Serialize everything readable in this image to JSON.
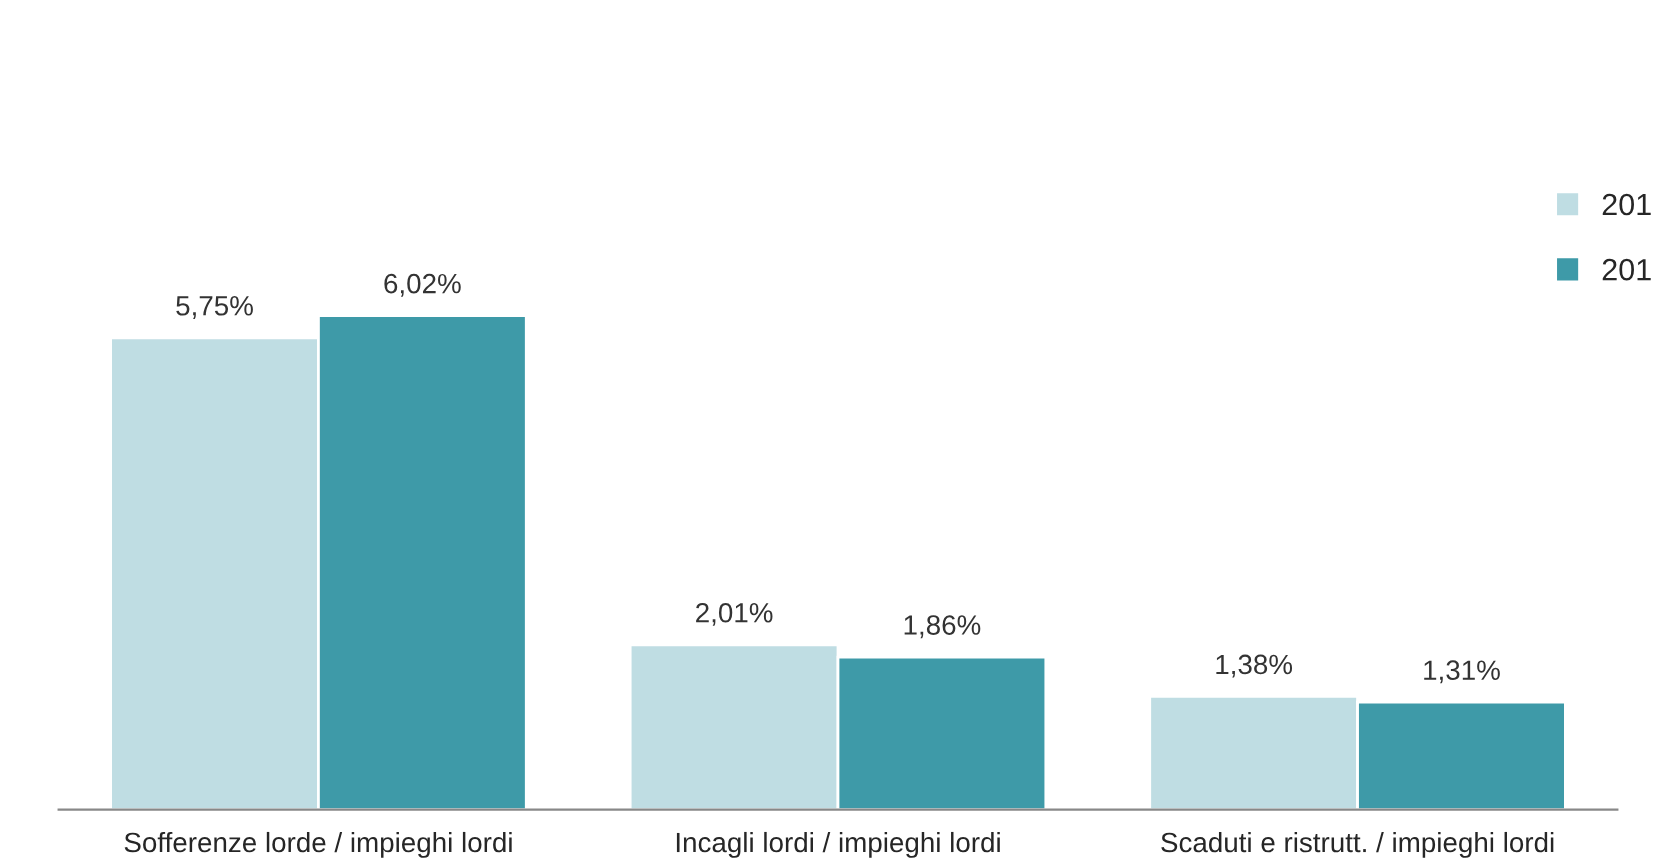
{
  "chart_data": {
    "type": "bar",
    "categories": [
      "Sofferenze lorde / impieghi lordi",
      "Incagli lordi / impieghi lordi",
      "Scaduti e ristrutt. / impieghi lordi"
    ],
    "series": [
      {
        "name": "201",
        "color": "#bfdde3",
        "values": [
          5.75,
          2.01,
          1.38
        ],
        "value_labels": [
          "5,75%",
          "2,01%",
          "1,38%"
        ]
      },
      {
        "name": "201",
        "color": "#3e9aa8",
        "values": [
          6.02,
          1.86,
          1.31
        ],
        "value_labels": [
          "6,02%",
          "1,86%",
          "1,31%"
        ]
      }
    ],
    "legend": "top right",
    "grid": false
  }
}
